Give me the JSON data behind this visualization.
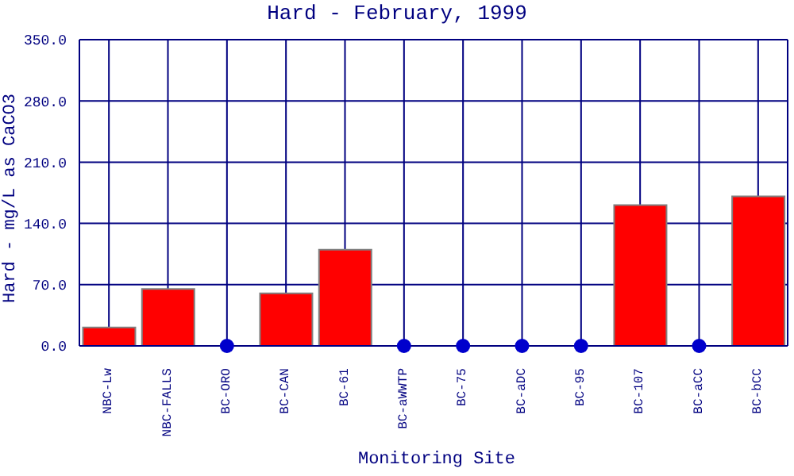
{
  "chart_data": {
    "type": "bar",
    "title": "Hard - February, 1999",
    "xlabel": "Monitoring Site",
    "ylabel": "Hard - mg/L as CaCO3",
    "categories": [
      "NBC-Lw",
      "NBC-FALLS",
      "BC-ORO",
      "BC-CAN",
      "BC-61",
      "BC-aWWTP",
      "BC-75",
      "BC-aDC",
      "BC-95",
      "BC-107",
      "BC-aCC",
      "BC-bCC"
    ],
    "series": [
      {
        "color": "#ff0000",
        "values": [
          21,
          65,
          null,
          60,
          110,
          null,
          null,
          null,
          null,
          161,
          null,
          171
        ]
      },
      {
        "type": "scatter",
        "color": "#0000cc",
        "x": [
          "BC-ORO",
          "BC-aWWTP",
          "BC-75",
          "BC-aDC",
          "BC-95",
          "BC-aCC"
        ],
        "values": [
          0,
          0,
          0,
          0,
          0,
          0
        ]
      }
    ],
    "ylim": [
      0,
      350
    ],
    "yticks": [
      {
        "value": 0,
        "label": "0.0"
      },
      {
        "value": 70,
        "label": "70.0"
      },
      {
        "value": 140,
        "label": "140.0"
      },
      {
        "value": 210,
        "label": "210.0"
      },
      {
        "value": 280,
        "label": "280.0"
      },
      {
        "value": 350,
        "label": "350.0"
      }
    ],
    "grid": true,
    "legend": false,
    "marker": "circle"
  }
}
